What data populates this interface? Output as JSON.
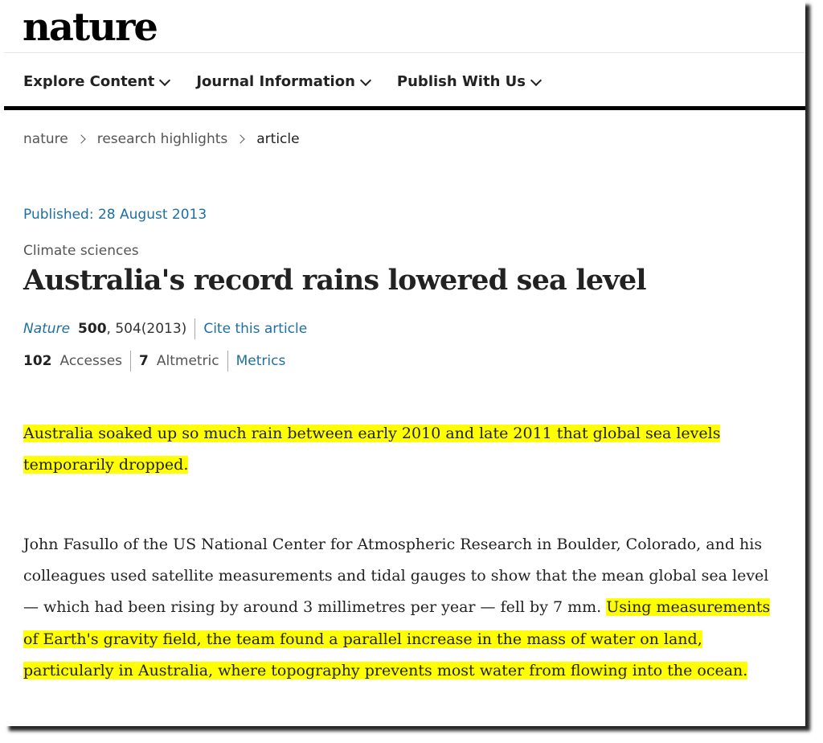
{
  "site": {
    "logo": "nature"
  },
  "nav": [
    {
      "label": "Explore Content"
    },
    {
      "label": "Journal Information"
    },
    {
      "label": "Publish With Us"
    }
  ],
  "breadcrumb": {
    "items": [
      "nature",
      "research highlights"
    ],
    "current": "article"
  },
  "article": {
    "published": "Published: 28 August 2013",
    "subject": "Climate sciences",
    "title": "Australia's record rains lowered sea level",
    "citation": {
      "journal": "Nature",
      "volume": "500",
      "pages": ", 504(2013)",
      "cite_link": "Cite this article"
    },
    "metrics": {
      "accesses_count": "102",
      "accesses_label": "Accesses",
      "altmetric_count": "7",
      "altmetric_label": "Altmetric",
      "metrics_link": "Metrics"
    },
    "standfirst": "Australia soaked up so much rain between early 2010 and late 2011 that global sea levels temporarily dropped.",
    "body_plain": "John Fasullo of the US National Center for Atmospheric Research in Boulder, Colorado, and his colleagues used satellite measurements and tidal gauges to show that the mean global sea level — which had been rising by around 3 millimetres per year — fell by 7 mm. ",
    "body_highlight": "Using measurements of Earth's gravity field, the team found a parallel increase in the mass of water on land, particularly in Australia, where topography prevents most water from flowing into the ocean."
  },
  "colors": {
    "highlight": "#ffff00",
    "link": "#1f6fa0",
    "rule": "#000000"
  }
}
